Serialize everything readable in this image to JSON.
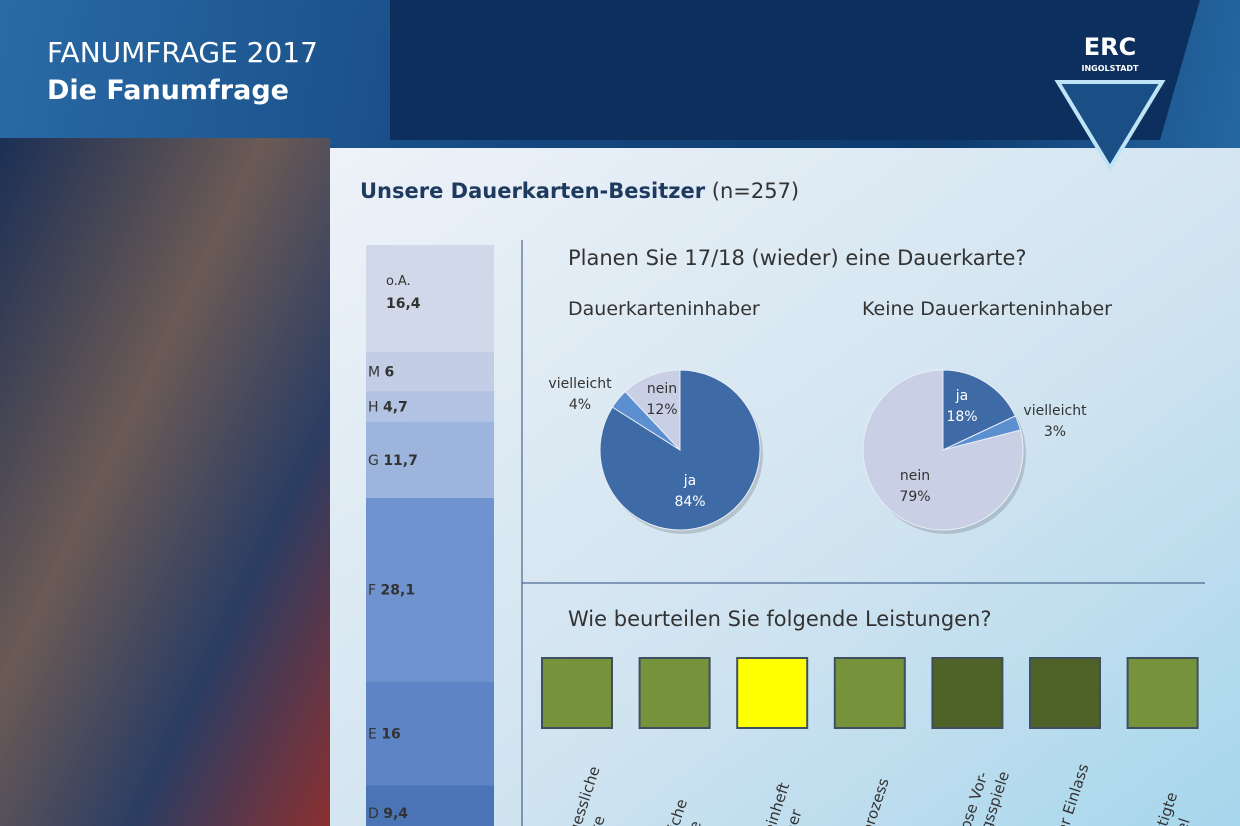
{
  "header": {
    "title": "FANUMFRAGE 2017",
    "subtitle": "Die Fanumfrage",
    "logo": {
      "name": "ERC",
      "sub": "INGOLSTADT"
    }
  },
  "section": {
    "title": "Unsere Dauerkarten-Besitzer",
    "note": "(n=257)"
  },
  "question1": "Planen Sie 17/18 (wieder) eine Dauerkarte?",
  "question2": "Wie beurteilen Sie folgende Leistungen?",
  "chart_data": [
    {
      "type": "stacked-bar",
      "series": [
        {
          "name": "o.A.",
          "color": "#d0d8ea",
          "values": [
            16.4
          ],
          "value_labels": [
            "16,4"
          ]
        },
        {
          "name": "M",
          "color": "#c3cee6",
          "values": [
            6
          ],
          "value_labels": [
            "6"
          ]
        },
        {
          "name": "H",
          "color": "#b2c2e2",
          "values": [
            4.7
          ],
          "value_labels": [
            "4,7"
          ]
        },
        {
          "name": "G",
          "color": "#9db4dc",
          "values": [
            11.7
          ],
          "value_labels": [
            "11,7"
          ]
        },
        {
          "name": "F",
          "color": "#6f93cf",
          "values": [
            28.1
          ],
          "value_labels": [
            "28,1"
          ]
        },
        {
          "name": "E",
          "color": "#5d85c5",
          "values": [
            16
          ],
          "value_labels": [
            "16"
          ]
        },
        {
          "name": "D",
          "color": "#4a74b6",
          "values": [
            9.4
          ],
          "value_labels": [
            "9,4"
          ]
        }
      ]
    },
    {
      "type": "pie",
      "title": "Dauerkarteninhaber",
      "categories": [
        "ja",
        "vielleicht",
        "nein"
      ],
      "values": [
        84,
        4,
        12
      ],
      "value_labels": [
        "84%",
        "4%",
        "12%"
      ],
      "colors": [
        "#3e6aa6",
        "#5b8fd0",
        "#c9d0e6"
      ]
    },
    {
      "type": "pie",
      "title": "Keine Dauerkarteninhaber",
      "categories": [
        "ja",
        "vielleicht",
        "nein"
      ],
      "values": [
        18,
        3,
        79
      ],
      "value_labels": [
        "18%",
        "3%",
        "79%"
      ],
      "colors": [
        "#3e6aa6",
        "#5b8fd0",
        "#c9d0e6"
      ]
    }
  ],
  "ratings": [
    {
      "label": "gessliche\nate",
      "color": "#76933c"
    },
    {
      "label": "liche\nbe",
      "color": "#76933c"
    },
    {
      "label": "einheft\ntner",
      "color": "#ffff00"
    },
    {
      "label": "prozess",
      "color": "#76933c"
    },
    {
      "label": "lose Vor-\nngsspiele",
      "color": "#4f6228"
    },
    {
      "label": "er Einlass",
      "color": "#4f6228"
    },
    {
      "label": "stigte\nkel",
      "color": "#76933c"
    }
  ]
}
